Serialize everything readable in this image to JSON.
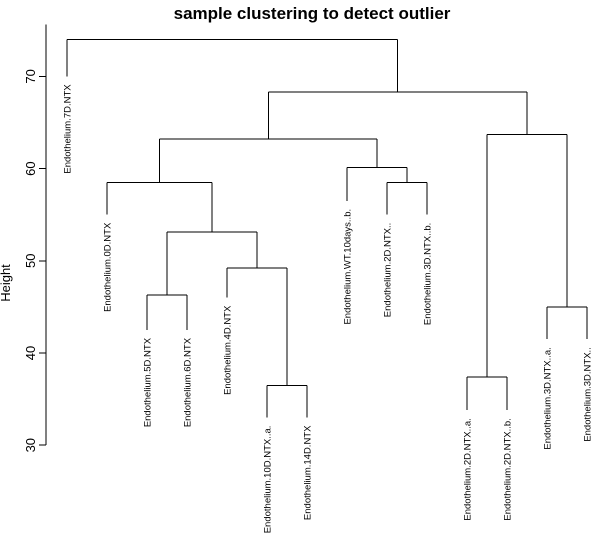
{
  "chart_data": {
    "type": "dendrogram",
    "title": "sample clustering to detect outlier",
    "ylabel": "Height",
    "xlabel": "",
    "ylim": [
      30,
      75
    ],
    "yticks": [
      30,
      40,
      50,
      60,
      70
    ],
    "leaves": [
      {
        "label": "Endothelium.7D.NTX",
        "height": 70
      },
      {
        "label": "Endothelium.0D.NTX",
        "height": 55
      },
      {
        "label": "Endothelium.5D.NTX",
        "height": 42.5
      },
      {
        "label": "Endothelium.6D.NTX",
        "height": 42.5
      },
      {
        "label": "Endothelium.4D.NTX",
        "height": 46
      },
      {
        "label": "Endothelium.10D.NTX..a.",
        "height": 33
      },
      {
        "label": "Endothelium.14D.NTX",
        "height": 33
      },
      {
        "label": "Endothelium.WT.10days..b.",
        "height": 56.5
      },
      {
        "label": "Endothelium.2D.NTX..",
        "height": 55
      },
      {
        "label": "Endothelium.3D.NTX..b.",
        "height": 55
      },
      {
        "label": "Endothelium.2D.NTX..a.",
        "height": 33.8
      },
      {
        "label": "Endothelium.2D.NTX..b.",
        "height": 33.8
      },
      {
        "label": "Endothelium.3D.NTX..a.",
        "height": 41.5
      },
      {
        "label": "Endothelium.3D.NTX.."
      }
    ],
    "merges": [
      {
        "left": 5,
        "right": 6,
        "height": 36.5
      },
      {
        "left": 10,
        "right": 11,
        "height": 37.4
      },
      {
        "left": 12,
        "right": 13,
        "height": 45
      },
      {
        "left": 2,
        "right": 3,
        "height": 46.3
      },
      {
        "left": 4,
        "right": "m0",
        "height": 49.2
      },
      {
        "left": 8,
        "right": 9,
        "height": 58.5
      },
      {
        "left": 7,
        "right": "m5",
        "height": 60.1
      },
      {
        "left": "m3",
        "right": "m4",
        "height": 53.1
      },
      {
        "left": 1,
        "right": "m7",
        "height": 58.5
      },
      {
        "left": "m8",
        "right": "m6",
        "height": 63.2
      },
      {
        "left": "m1",
        "right": "m2",
        "height": 63.7
      },
      {
        "left": "m9",
        "right": "m10",
        "height": 68.3
      },
      {
        "left": 0,
        "right": "m11",
        "height": 74
      }
    ]
  }
}
